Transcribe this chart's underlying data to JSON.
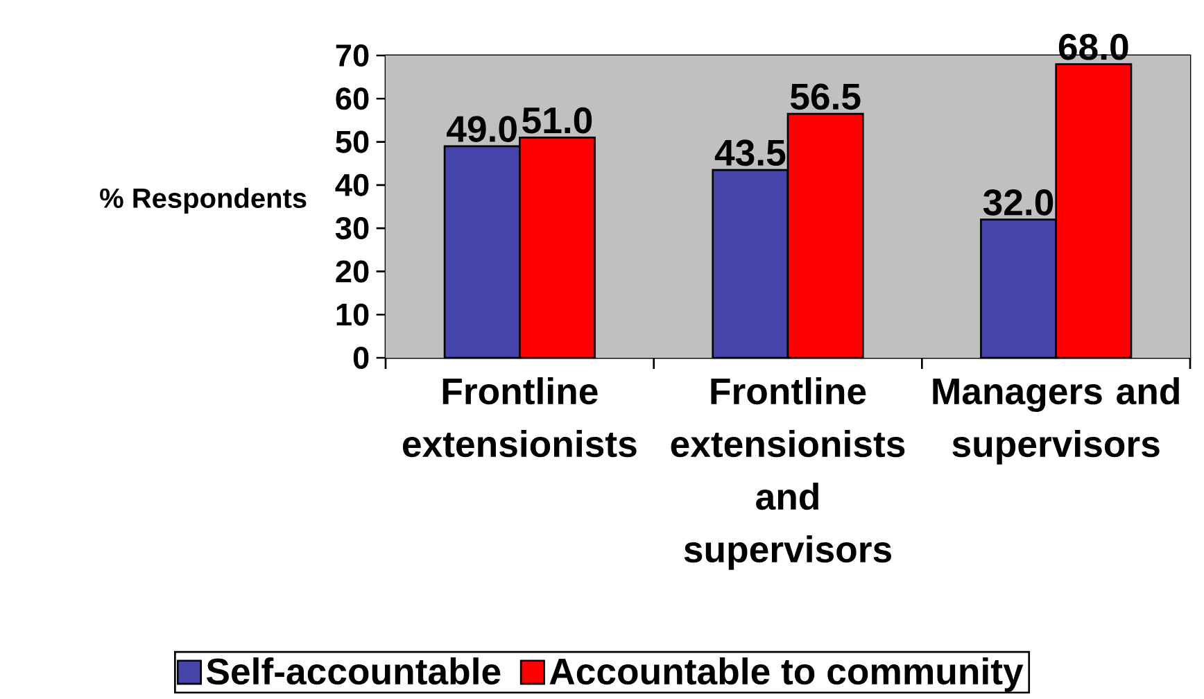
{
  "chart_data": {
    "type": "bar",
    "categories": [
      "Frontline extensionists",
      "Frontline extensionists and supervisors",
      "Managers and supervisors"
    ],
    "series": [
      {
        "name": "Self-accountable",
        "color": "#4444aa",
        "values": [
          49.0,
          43.5,
          32.0
        ],
        "value_labels": [
          "49.0",
          "43.5",
          "32.0"
        ]
      },
      {
        "name": "Accountable to community",
        "color": "#ff0000",
        "values": [
          51.0,
          56.5,
          68.0
        ],
        "value_labels": [
          "51.0",
          "56.5",
          "68.0"
        ]
      }
    ],
    "ylabel": "% Respondents",
    "ylim": [
      0,
      70
    ],
    "yticks": [
      0,
      10,
      20,
      30,
      40,
      50,
      60,
      70
    ],
    "grid": "y",
    "legend": "bottom"
  }
}
